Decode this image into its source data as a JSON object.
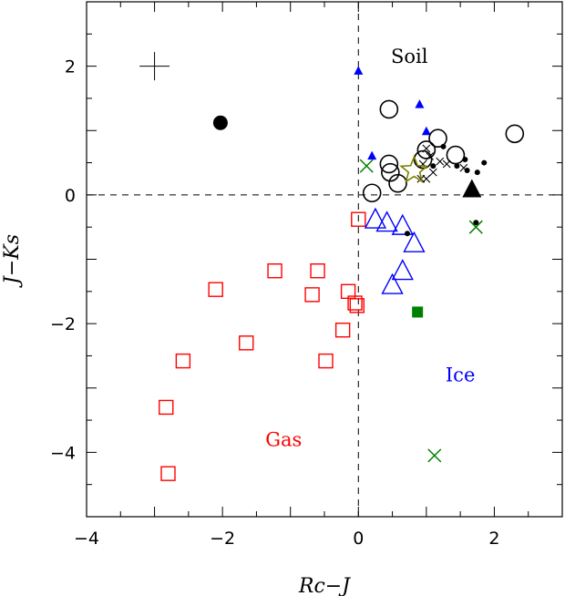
{
  "chart_data": {
    "type": "scatter",
    "xlabel": "Rc−J",
    "ylabel": "J−Ks",
    "xlim": [
      -4,
      3
    ],
    "ylim": [
      -5,
      3
    ],
    "x_ticks": [
      -4,
      -2,
      0,
      2
    ],
    "y_ticks": [
      -4,
      -2,
      0,
      2
    ],
    "x_tick_labels": [
      "−4",
      "−2",
      "0",
      "2"
    ],
    "y_tick_labels": [
      "−4",
      "−2",
      "0",
      "2"
    ],
    "reference_lines": [
      {
        "orientation": "vertical",
        "value": 0,
        "style": "dashed"
      },
      {
        "orientation": "horizontal",
        "value": 0,
        "style": "dashed"
      }
    ],
    "annotations": [
      {
        "text": "Soil",
        "x": 0.75,
        "y": 2.05,
        "color": "#000000"
      },
      {
        "text": "Ice",
        "x": 1.5,
        "y": -2.9,
        "color": "#0000ff"
      },
      {
        "text": "Gas",
        "x": -1.1,
        "y": -3.9,
        "color": "#ff0000"
      }
    ],
    "error_bar": {
      "x": -3.0,
      "y": 2.0,
      "xerr": 0.22,
      "yerr": 0.22
    },
    "series": [
      {
        "marker": "open-square",
        "color": "#ff0000",
        "points": [
          [
            -2.8,
            -4.33
          ],
          [
            -2.83,
            -3.3
          ],
          [
            -2.58,
            -2.58
          ],
          [
            -2.1,
            -1.47
          ],
          [
            -1.65,
            -2.3
          ],
          [
            -1.23,
            -1.18
          ],
          [
            -0.68,
            -1.55
          ],
          [
            -0.6,
            -1.18
          ],
          [
            -0.48,
            -2.58
          ],
          [
            -0.23,
            -2.1
          ],
          [
            -0.15,
            -1.5
          ],
          [
            -0.05,
            -1.68
          ],
          [
            -0.02,
            -1.72
          ],
          [
            0.0,
            -0.38
          ]
        ]
      },
      {
        "marker": "open-triangle",
        "color": "#0000ff",
        "points": [
          [
            0.25,
            -0.4
          ],
          [
            0.42,
            -0.45
          ],
          [
            0.65,
            -0.5
          ],
          [
            0.82,
            -0.77
          ],
          [
            0.65,
            -1.2
          ],
          [
            0.5,
            -1.42
          ]
        ]
      },
      {
        "marker": "small-filled-triangle",
        "color": "#0000ff",
        "points": [
          [
            0.0,
            1.92
          ],
          [
            0.9,
            1.4
          ],
          [
            1.0,
            0.98
          ],
          [
            0.2,
            0.6
          ]
        ]
      },
      {
        "marker": "open-circle",
        "color": "#000000",
        "points": [
          [
            0.45,
            1.33
          ],
          [
            1.17,
            0.88
          ],
          [
            1.43,
            0.62
          ],
          [
            2.3,
            0.95
          ],
          [
            0.45,
            0.48
          ],
          [
            0.47,
            0.35
          ],
          [
            0.95,
            0.55
          ],
          [
            0.58,
            0.18
          ],
          [
            0.2,
            0.03
          ],
          [
            1.0,
            0.7
          ]
        ]
      },
      {
        "marker": "filled-circle",
        "color": "#000000",
        "points": [
          [
            -2.03,
            1.12
          ]
        ]
      },
      {
        "marker": "dot",
        "color": "#000000",
        "points": [
          [
            1.25,
            0.75
          ],
          [
            1.45,
            0.45
          ],
          [
            1.57,
            0.55
          ],
          [
            1.85,
            0.5
          ],
          [
            1.75,
            0.35
          ],
          [
            1.6,
            0.38
          ],
          [
            1.1,
            0.45
          ],
          [
            1.73,
            -0.43
          ],
          [
            0.72,
            -0.6
          ]
        ]
      },
      {
        "marker": "small-cross",
        "color": "#000000",
        "points": [
          [
            1.0,
            0.72
          ],
          [
            1.05,
            0.6
          ],
          [
            1.1,
            0.35
          ],
          [
            1.2,
            0.52
          ],
          [
            1.3,
            0.48
          ],
          [
            1.55,
            0.42
          ],
          [
            0.92,
            0.25
          ],
          [
            1.0,
            0.25
          ],
          [
            0.95,
            0.48
          ]
        ]
      },
      {
        "marker": "green-cross",
        "color": "#008000",
        "points": [
          [
            0.12,
            0.45
          ],
          [
            1.73,
            -0.5
          ],
          [
            1.12,
            -4.05
          ]
        ]
      },
      {
        "marker": "filled-square",
        "color": "#008000",
        "points": [
          [
            0.87,
            -1.82
          ]
        ]
      },
      {
        "marker": "filled-triangle",
        "color": "#000000",
        "points": [
          [
            1.67,
            0.07
          ]
        ]
      },
      {
        "marker": "open-star",
        "color": "#808000",
        "points": [
          [
            0.82,
            0.38
          ]
        ]
      }
    ]
  }
}
